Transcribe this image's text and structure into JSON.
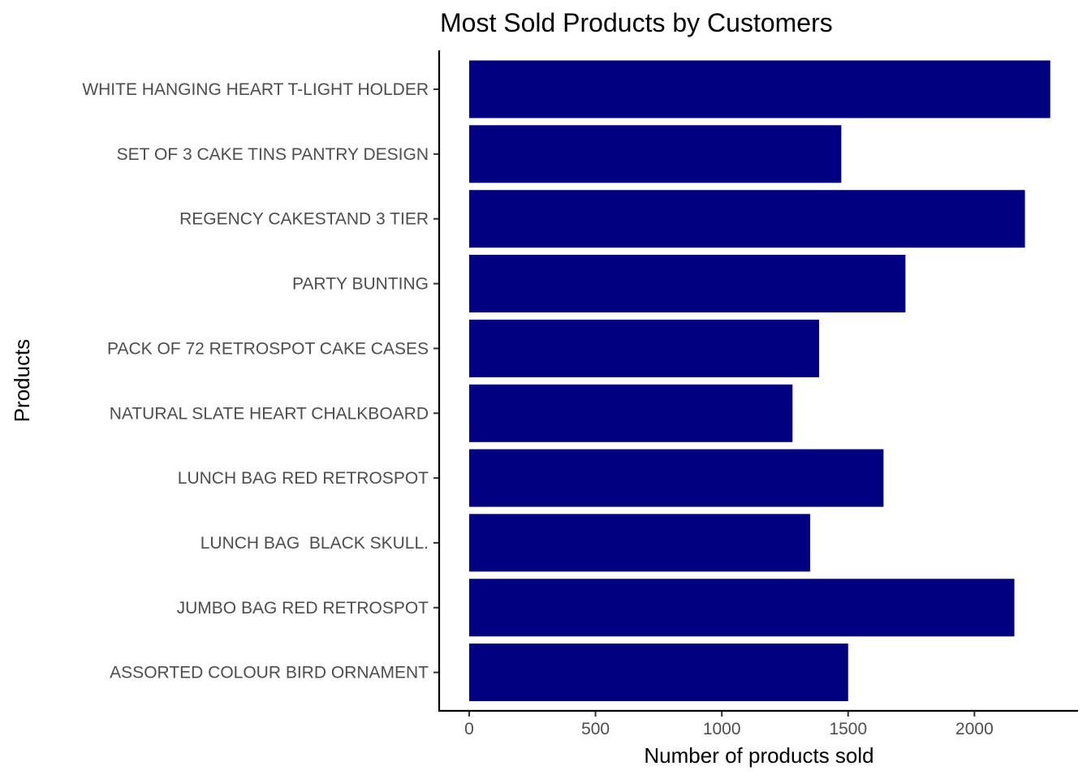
{
  "chart_data": {
    "type": "bar",
    "orientation": "horizontal",
    "title": "Most Sold Products by Customers",
    "xlabel": "Number of products sold",
    "ylabel": "Products",
    "xlim": [
      0,
      2300
    ],
    "x_ticks": [
      0,
      500,
      1000,
      1500,
      2000
    ],
    "categories": [
      "WHITE HANGING HEART T-LIGHT HOLDER",
      "SET OF 3 CAKE TINS PANTRY DESIGN",
      "REGENCY CAKESTAND 3 TIER",
      "PARTY BUNTING",
      "PACK OF 72 RETROSPOT CAKE CASES",
      "NATURAL SLATE HEART CHALKBOARD",
      "LUNCH BAG RED RETROSPOT",
      "LUNCH BAG  BLACK SKULL.",
      "JUMBO BAG RED RETROSPOT",
      "ASSORTED COLOUR BIRD ORNAMENT"
    ],
    "values": [
      2300,
      1473,
      2200,
      1727,
      1385,
      1280,
      1640,
      1350,
      2158,
      1500
    ],
    "bar_color": "#000080",
    "grid": false
  }
}
